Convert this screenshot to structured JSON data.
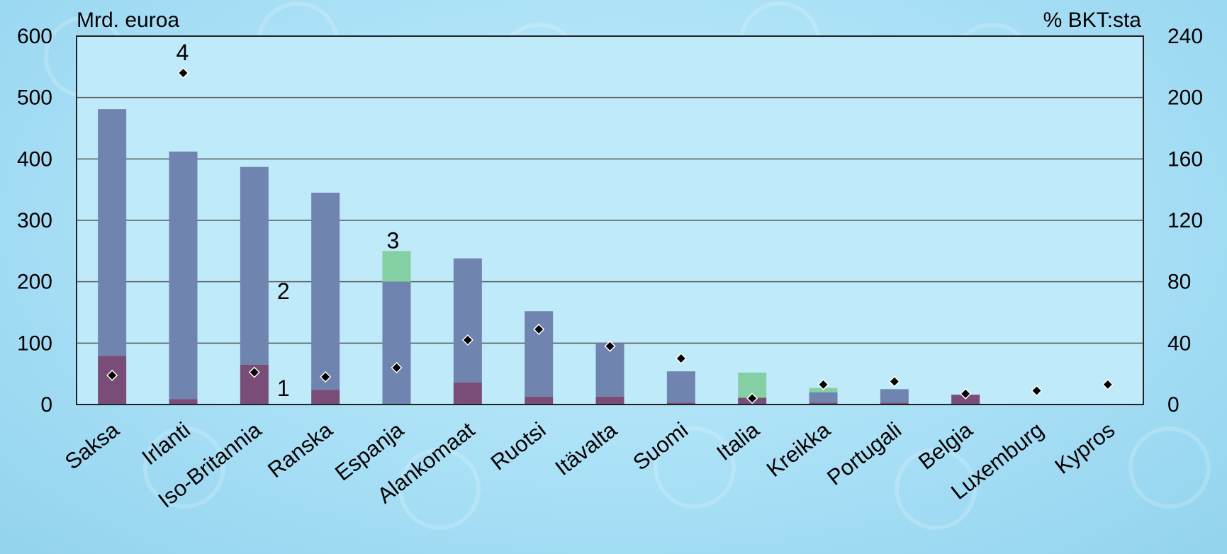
{
  "colors": {
    "background": "#aee2f7",
    "plot_area": "#bfeafa",
    "series_1": "#7a4d79",
    "series_2": "#6f84ae",
    "series_3": "#85cfa4",
    "marker": "#000000",
    "gridline": "#5a5a5a"
  },
  "chart_data": {
    "type": "bar",
    "stacked": true,
    "title": "",
    "ylabel_left": "Mrd. euroa",
    "ylabel_right": "% BKT:sta",
    "ylim_left": [
      0,
      600
    ],
    "ylim_right": [
      0,
      240
    ],
    "yticks_left": [
      "0",
      "100",
      "200",
      "300",
      "400",
      "500",
      "600"
    ],
    "yticks_right": [
      "0",
      "40",
      "80",
      "120",
      "160",
      "200",
      "240"
    ],
    "grid": true,
    "legend": "none",
    "categories": [
      "Saksa",
      "Irlanti",
      "Iso-Britannia",
      "Ranska",
      "Espanja",
      "Alankomaat",
      "Ruotsi",
      "Itävalta",
      "Suomi",
      "Italia",
      "Kreikka",
      "Portugali",
      "Belgia",
      "Luxemburg",
      "Kypros"
    ],
    "series": [
      {
        "key": "s1",
        "label": "1",
        "axis": "left",
        "kind": "bar",
        "values": [
          79,
          9,
          65,
          24,
          0,
          36,
          13,
          13,
          3,
          11,
          3,
          3,
          16,
          0,
          0
        ]
      },
      {
        "key": "s2",
        "label": "2",
        "axis": "left",
        "kind": "bar",
        "values": [
          402,
          403,
          322,
          321,
          200,
          202,
          139,
          87,
          51,
          0,
          17,
          22,
          0,
          0,
          0
        ]
      },
      {
        "key": "s3",
        "label": "3",
        "axis": "left",
        "kind": "bar",
        "values": [
          0,
          0,
          0,
          0,
          50,
          0,
          0,
          0,
          0,
          41,
          7,
          0,
          0,
          0,
          0
        ]
      },
      {
        "key": "s4",
        "label": "4",
        "axis": "right",
        "kind": "marker",
        "values": [
          19,
          216,
          21,
          18,
          24,
          42,
          49,
          38,
          30,
          4,
          13,
          15,
          7,
          9,
          13
        ]
      }
    ],
    "annotations": [
      {
        "text": "1",
        "series": "s1"
      },
      {
        "text": "2",
        "series": "s2"
      },
      {
        "text": "3",
        "series": "s3"
      },
      {
        "text": "4",
        "series": "s4"
      }
    ]
  }
}
